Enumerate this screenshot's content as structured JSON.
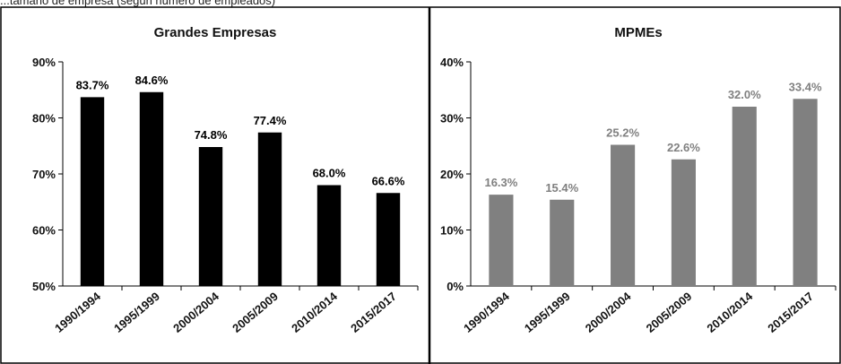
{
  "header_text": "...tamaño de empresa (según número de empleados)",
  "chart_data": [
    {
      "type": "bar",
      "title": "Grandes Empresas",
      "categories": [
        "1990/1994",
        "1995/1999",
        "2000/2004",
        "2005/2009",
        "2010/2014",
        "2015/2017"
      ],
      "values": [
        83.7,
        84.6,
        74.8,
        77.4,
        68.0,
        66.6
      ],
      "value_labels": [
        "83.7%",
        "84.6%",
        "74.8%",
        "77.4%",
        "68.0%",
        "66.6%"
      ],
      "ylim": [
        50,
        90
      ],
      "yticks": [
        50,
        60,
        70,
        80,
        90
      ],
      "ytick_labels": [
        "50%",
        "60%",
        "70%",
        "80%",
        "90%"
      ],
      "bar_color": "#000000",
      "label_color": "#000000",
      "grid": false
    },
    {
      "type": "bar",
      "title": "MPMEs",
      "categories": [
        "1990/1994",
        "1995/1999",
        "2000/2004",
        "2005/2009",
        "2010/2014",
        "2015/2017"
      ],
      "values": [
        16.3,
        15.4,
        25.2,
        22.6,
        32.0,
        33.4
      ],
      "value_labels": [
        "16.3%",
        "15.4%",
        "25.2%",
        "22.6%",
        "32.0%",
        "33.4%"
      ],
      "ylim": [
        0,
        40
      ],
      "yticks": [
        0,
        10,
        20,
        30,
        40
      ],
      "ytick_labels": [
        "0%",
        "10%",
        "20%",
        "30%",
        "40%"
      ],
      "bar_color": "#808080",
      "label_color": "#808080",
      "grid": false
    }
  ]
}
